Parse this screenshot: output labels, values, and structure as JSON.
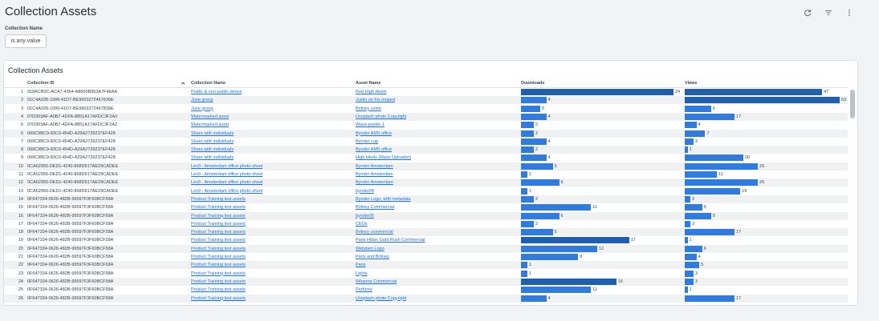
{
  "page_title": "Collection Assets",
  "filter": {
    "label": "Collection Name",
    "value": "is any value"
  },
  "card": {
    "title": "Collection Assets"
  },
  "columns": [
    "Collection ID",
    "Collection Name",
    "Asset Name",
    "Downloads",
    "Views"
  ],
  "colors": {
    "bar_dark": "#1f5fad",
    "bar": "#2f7be0"
  },
  "max": {
    "downloads": 24,
    "views": 53
  },
  "rows": [
    {
      "n": "1",
      "id": "018ACB0C-ACA7-4364-A8600B953A7F46AA",
      "name": "Public & non-public derivs",
      "asset": "Red High Heels",
      "dl": 24,
      "vw": 47
    },
    {
      "n": "2",
      "id": "01C4A028-1999-41D7-BE9903272467839E",
      "name": "June group",
      "asset": "Justin on his moped",
      "dl": 4,
      "vw": 53
    },
    {
      "n": "3",
      "id": "01C4A028-1999-41D7-BE9903272467839E",
      "name": "June group",
      "asset": "Britney celeb",
      "dl": 3,
      "vw": 9
    },
    {
      "n": "4",
      "id": "07D303AF-A0B7-4DFA-8851A17AFDC3F2A2",
      "name": "Watermarked asset",
      "asset": "Unsplash photo Copyright",
      "dl": 4,
      "vw": 17
    },
    {
      "n": "5",
      "id": "07D303AF-A0B7-4DFA-8851A17AFDC3F2A2",
      "name": "Watermarked asset",
      "asset": "Wave-poster-1",
      "dl": 2,
      "vw": 4
    },
    {
      "n": "6",
      "id": "099C9BC9-83C0-454D-A29A2739237EF428",
      "name": "Share with individuals",
      "asset": "Bynder AMS office",
      "dl": 2,
      "vw": 7
    },
    {
      "n": "7",
      "id": "099C9BC9-83C0-454D-A29A2739237EF428",
      "name": "Share with individuals",
      "asset": "Bynder cup",
      "dl": 4,
      "vw": 3
    },
    {
      "n": "8",
      "id": "099C9BC9-83C0-454D-A29A2739237EF428",
      "name": "Share with individuals",
      "asset": "Bynder AMS office",
      "dl": 2,
      "vw": 1
    },
    {
      "n": "9",
      "id": "099C9BC9-83C0-454D-A29A2739237EF428",
      "name": "Share with individuals",
      "asset": "High Heels (Mass Uploader)",
      "dl": 4,
      "vw": 20
    },
    {
      "n": "10",
      "id": "0CA62955-DED1-4240-868D917AE29CADEE",
      "name": "Lev9 - Amsterdam office photo shoot",
      "asset": "Bynder Amsterdam",
      "dl": 5,
      "vw": 25
    },
    {
      "n": "11",
      "id": "0CA62955-DED1-4240-868D917AE29CADEE",
      "name": "Lev9 - Amsterdam office photo shoot",
      "asset": "Bynder Amsterdam",
      "dl": 1,
      "vw": 11
    },
    {
      "n": "12",
      "id": "0CA62955-DED1-4240-868D917AE29CADEE",
      "name": "Lev9 - Amsterdam office photo shoot",
      "asset": "Bynder Amsterdam",
      "dl": 6,
      "vw": 25
    },
    {
      "n": "13",
      "id": "0CA62955-DED1-4240-868D917AE29CADEE",
      "name": "Lev9 - Amsterdam office photo shoot",
      "asset": "bynder04",
      "dl": 1,
      "vw": 19
    },
    {
      "n": "14",
      "id": "0F647334-0626-482B-99597F3F60BCF58A",
      "name": "Product Training test assets",
      "asset": "Bynder Logo, with metadata",
      "dl": 2,
      "vw": 2
    },
    {
      "n": "15",
      "id": "0F647334-0626-482B-99597F3F60BCF58A",
      "name": "Product Training test assets",
      "asset": "Britney Commercial",
      "dl": 11,
      "vw": 6
    },
    {
      "n": "16",
      "id": "0F647334-0626-482B-99597F3F60BCF58A",
      "name": "Product Training test assets",
      "asset": "bynder05",
      "dl": 6,
      "vw": 9
    },
    {
      "n": "17",
      "id": "0F647334-0626-482B-99597F3F60BCF58A",
      "name": "Product Training test assets",
      "asset": "CEOs",
      "dl": 2,
      "vw": 2
    },
    {
      "n": "18",
      "id": "0F647334-0626-482B-99597F3F60BCF58A",
      "name": "Product Training test assets",
      "asset": "Britney commercial",
      "dl": 5,
      "vw": 17
    },
    {
      "n": "19",
      "id": "0F647334-0626-482B-99597F3F60BCF58A",
      "name": "Product Training test assets",
      "asset": "Paris Hilton Gold Rush Commercial",
      "dl": 17,
      "vw": 1
    },
    {
      "n": "20",
      "id": "0F647334-0626-482B-99597F3F60BCF58A",
      "name": "Product Training test assets",
      "asset": "Webdam Logo",
      "dl": 12,
      "vw": 6
    },
    {
      "n": "21",
      "id": "0F647334-0626-482B-99597F3F60BCF58A",
      "name": "Product Training test assets",
      "asset": "Paris and Britney",
      "dl": 9,
      "vw": 4
    },
    {
      "n": "22",
      "id": "0F647334-0626-482B-99597F3F60BCF58A",
      "name": "Product Training test assets",
      "asset": "Paris",
      "dl": 1,
      "vw": 5
    },
    {
      "n": "23",
      "id": "0F647334-0626-482B-99597F3F60BCF58A",
      "name": "Product Training test assets",
      "asset": "Lights",
      "dl": 1,
      "vw": 3
    },
    {
      "n": "24",
      "id": "0F647334-0626-482B-99597F3F60BCF58A",
      "name": "Product Training test assets",
      "asset": "Rihanna Commercial",
      "dl": 15,
      "vw": 3
    },
    {
      "n": "25",
      "id": "0F647334-0626-482B-99597F3F60BCF58A",
      "name": "Product Training test assets",
      "asset": "Perfume",
      "dl": 11,
      "vw": 1
    },
    {
      "n": "26",
      "id": "0F647334-0626-482B-99597F3F60BCF58A",
      "name": "Product Training test assets",
      "asset": "Unsplash photo Copyright",
      "dl": 4,
      "vw": 17
    }
  ]
}
